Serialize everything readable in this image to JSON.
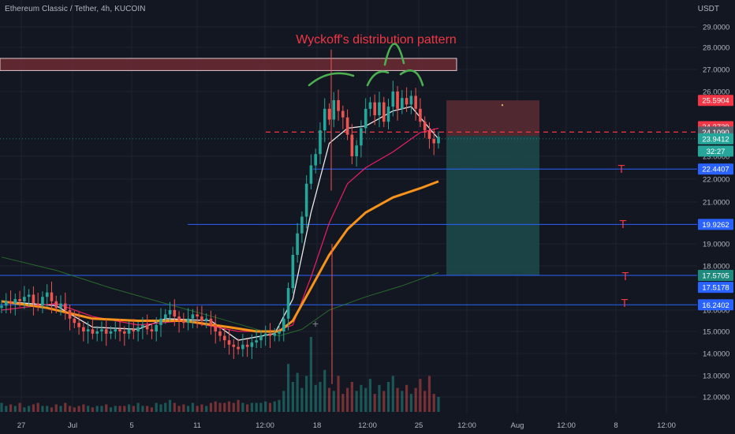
{
  "header": {
    "symbol": "Ethereum Classic / Tether, 4h, KUCOIN",
    "currency": "USDT"
  },
  "colors": {
    "background": "#131722",
    "grid": "#1f2330",
    "axis_text": "#b2b5be",
    "candle_up": "#26a69a",
    "candle_down": "#ef5350",
    "ema_fast": "#e8e8e8",
    "ema_mid": "#e91e63",
    "ema_orange": "#f7931a",
    "ema_long": "#2e7d32",
    "horizontal_line": "#2962ff",
    "entry_line": "#f23645",
    "target_mark": "#f23645",
    "annotation_text": "#f23645",
    "arc_color": "#4caf50",
    "resistance_box": "#7a2e36",
    "stop_zone": "#5c2b33",
    "profit_zone": "#1d4a4a"
  },
  "chart_data": {
    "type": "candlestick",
    "title": "",
    "xlabel": "",
    "ylabel": "",
    "ylim": [
      11.5,
      30.0
    ],
    "grid": true,
    "y_ticks": [
      "29.0000",
      "28.0000",
      "27.0000",
      "26.0000",
      "23.0000",
      "22.0000",
      "21.0000",
      "19.0000",
      "18.0000",
      "16.0000",
      "15.0000",
      "14.0000",
      "13.0000",
      "12.0000"
    ],
    "y_tick_values": [
      29,
      28,
      27,
      26,
      23,
      22,
      21,
      19,
      18,
      16,
      15,
      14,
      13,
      12
    ],
    "x_ticks": [
      "27",
      "Jul",
      "5",
      "11",
      "12:00",
      "18",
      "12:00",
      "25",
      "12:00",
      "Aug",
      "12:00",
      "8",
      "12:00"
    ],
    "price_tags": [
      {
        "label": "25.5904",
        "value": 25.59,
        "color": "#f23645"
      },
      {
        "label": "24.3729",
        "value": 24.37,
        "color": "#f23645"
      },
      {
        "label": "24.1090",
        "value": 24.12,
        "color": "#5d606b"
      },
      {
        "label": "23.9412",
        "value": 23.81,
        "color": "#26a69a"
      },
      {
        "label": "32:27",
        "value": 23.24,
        "color": "#26a69a"
      },
      {
        "label": "22.4407",
        "value": 22.44,
        "color": "#2962ff"
      },
      {
        "label": "19.9262",
        "value": 19.93,
        "color": "#2962ff"
      },
      {
        "label": "17.5705",
        "value": 17.57,
        "color": "#1e8a7e"
      },
      {
        "label": "17.5178",
        "value": 17.03,
        "color": "#2962ff"
      },
      {
        "label": "16.2402",
        "value": 16.24,
        "color": "#2962ff"
      }
    ],
    "annotation": "Wyckoff's distribution pattern",
    "target_label": "T",
    "horizontal_levels": [
      22.44,
      19.93,
      17.57,
      16.24
    ],
    "entry_level": 24.12,
    "resistance_zone": [
      26.95,
      27.5
    ],
    "position": {
      "stop": 25.59,
      "entry": 23.94,
      "target": 17.57
    },
    "close_path": [
      [
        0,
        16.2
      ],
      [
        1,
        16.4
      ],
      [
        2,
        16.3
      ],
      [
        3,
        16.5
      ],
      [
        4,
        16.4
      ],
      [
        5,
        16.6
      ],
      [
        6,
        16.7
      ],
      [
        7,
        16.3
      ],
      [
        8,
        16.2
      ],
      [
        9,
        16.6
      ],
      [
        10,
        16.8
      ],
      [
        11,
        16.4
      ],
      [
        12,
        16.1
      ],
      [
        13,
        16.3
      ],
      [
        14,
        16.0
      ],
      [
        15,
        15.6
      ],
      [
        16,
        15.4
      ],
      [
        17,
        15.2
      ],
      [
        18,
        15.0
      ],
      [
        19,
        15.1
      ],
      [
        20,
        14.9
      ],
      [
        21,
        15.0
      ],
      [
        22,
        15.1
      ],
      [
        23,
        14.9
      ],
      [
        24,
        15.0
      ],
      [
        25,
        15.1
      ],
      [
        26,
        15.0
      ],
      [
        27,
        14.9
      ],
      [
        28,
        15.1
      ],
      [
        29,
        15.0
      ],
      [
        30,
        15.2
      ],
      [
        31,
        15.3
      ],
      [
        32,
        15.1
      ],
      [
        33,
        15.0
      ],
      [
        34,
        15.3
      ],
      [
        35,
        15.6
      ],
      [
        36,
        15.8
      ],
      [
        37,
        16.0
      ],
      [
        38,
        15.7
      ],
      [
        39,
        15.5
      ],
      [
        40,
        15.4
      ],
      [
        41,
        15.6
      ],
      [
        42,
        15.8
      ],
      [
        43,
        15.7
      ],
      [
        44,
        15.5
      ],
      [
        45,
        15.6
      ],
      [
        46,
        15.3
      ],
      [
        47,
        15.0
      ],
      [
        48,
        14.8
      ],
      [
        49,
        14.6
      ],
      [
        50,
        14.4
      ],
      [
        51,
        14.3
      ],
      [
        52,
        14.2
      ],
      [
        53,
        14.4
      ],
      [
        54,
        14.3
      ],
      [
        55,
        14.5
      ],
      [
        56,
        14.6
      ],
      [
        57,
        14.8
      ],
      [
        58,
        14.9
      ],
      [
        59,
        14.8
      ],
      [
        60,
        14.9
      ],
      [
        61,
        15.0
      ],
      [
        62,
        15.6
      ],
      [
        63,
        17.0
      ],
      [
        64,
        18.5
      ],
      [
        65,
        19.5
      ],
      [
        66,
        20.3
      ],
      [
        67,
        21.8
      ],
      [
        68,
        22.6
      ],
      [
        69,
        23.1
      ],
      [
        70,
        24.2
      ],
      [
        71,
        25.2
      ],
      [
        72,
        24.7
      ],
      [
        73,
        25.6
      ],
      [
        74,
        25.1
      ],
      [
        75,
        24.8
      ],
      [
        76,
        24.0
      ],
      [
        77,
        23.0
      ],
      [
        78,
        23.5
      ],
      [
        79,
        24.3
      ],
      [
        80,
        25.2
      ],
      [
        81,
        25.5
      ],
      [
        82,
        24.9
      ],
      [
        83,
        25.5
      ],
      [
        84,
        24.6
      ],
      [
        85,
        25.3
      ],
      [
        86,
        26.0
      ],
      [
        87,
        25.2
      ],
      [
        88,
        25.7
      ],
      [
        89,
        25.4
      ],
      [
        90,
        25.8
      ],
      [
        91,
        25.2
      ],
      [
        92,
        24.6
      ],
      [
        93,
        24.2
      ],
      [
        94,
        23.8
      ],
      [
        95,
        23.6
      ],
      [
        96,
        23.9
      ]
    ],
    "series": [
      {
        "name": "EMA fast",
        "values": [
          [
            0,
            16.4
          ],
          [
            12,
            16.2
          ],
          [
            20,
            15.2
          ],
          [
            30,
            15.1
          ],
          [
            36,
            15.6
          ],
          [
            46,
            15.5
          ],
          [
            52,
            14.6
          ],
          [
            60,
            14.9
          ],
          [
            64,
            16.5
          ],
          [
            68,
            20.5
          ],
          [
            72,
            23.6
          ],
          [
            76,
            24.3
          ],
          [
            80,
            24.4
          ],
          [
            86,
            25.1
          ],
          [
            90,
            25.3
          ],
          [
            94,
            24.3
          ],
          [
            96,
            23.8
          ]
        ]
      },
      {
        "name": "EMA mid",
        "values": [
          [
            0,
            16.0
          ],
          [
            12,
            16.3
          ],
          [
            20,
            15.7
          ],
          [
            30,
            15.3
          ],
          [
            40,
            15.5
          ],
          [
            52,
            15.0
          ],
          [
            60,
            15.0
          ],
          [
            64,
            15.3
          ],
          [
            68,
            17.5
          ],
          [
            72,
            20.0
          ],
          [
            76,
            21.8
          ],
          [
            80,
            22.5
          ],
          [
            86,
            23.2
          ],
          [
            92,
            24.1
          ],
          [
            96,
            24.3
          ]
        ]
      },
      {
        "name": "EMA orange",
        "values": [
          [
            0,
            16.4
          ],
          [
            10,
            16.1
          ],
          [
            20,
            15.6
          ],
          [
            30,
            15.5
          ],
          [
            40,
            15.5
          ],
          [
            50,
            15.2
          ],
          [
            56,
            15.0
          ],
          [
            61,
            15.0
          ],
          [
            64,
            15.5
          ],
          [
            68,
            17.0
          ],
          [
            72,
            18.5
          ],
          [
            76,
            19.7
          ],
          [
            80,
            20.5
          ],
          [
            86,
            21.2
          ],
          [
            92,
            21.6
          ],
          [
            96,
            21.9
          ]
        ]
      },
      {
        "name": "EMA long",
        "values": [
          [
            0,
            18.4
          ],
          [
            12,
            17.8
          ],
          [
            24,
            17.0
          ],
          [
            36,
            16.3
          ],
          [
            48,
            15.6
          ],
          [
            56,
            15.1
          ],
          [
            61,
            14.8
          ],
          [
            66,
            15.1
          ],
          [
            72,
            16.0
          ],
          [
            80,
            16.6
          ],
          [
            88,
            17.1
          ],
          [
            96,
            17.7
          ]
        ]
      }
    ],
    "volume": [
      0.3,
      0.2,
      0.25,
      0.2,
      0.3,
      0.15,
      0.2,
      0.25,
      0.3,
      0.2,
      0.2,
      0.15,
      0.25,
      0.2,
      0.3,
      0.2,
      0.15,
      0.2,
      0.25,
      0.2,
      0.15,
      0.2,
      0.2,
      0.25,
      0.15,
      0.2,
      0.2,
      0.2,
      0.25,
      0.2,
      0.3,
      0.2,
      0.2,
      0.15,
      0.3,
      0.25,
      0.3,
      0.4,
      0.3,
      0.2,
      0.25,
      0.2,
      0.3,
      0.2,
      0.25,
      0.2,
      0.3,
      0.35,
      0.3,
      0.3,
      0.35,
      0.3,
      0.4,
      0.3,
      0.25,
      0.3,
      0.3,
      0.3,
      0.35,
      0.3,
      0.35,
      0.4,
      0.7,
      1.6,
      1.0,
      1.3,
      0.8,
      1.2,
      2.5,
      0.9,
      1.0,
      1.4,
      0.8,
      0.7,
      1.2,
      0.6,
      0.8,
      1.0,
      0.7,
      0.9,
      0.8,
      1.1,
      0.6,
      0.9,
      0.7,
      1.0,
      1.2,
      0.8,
      0.7,
      0.9,
      0.6,
      0.8,
      1.1,
      0.7,
      1.2,
      0.6,
      0.5
    ]
  }
}
